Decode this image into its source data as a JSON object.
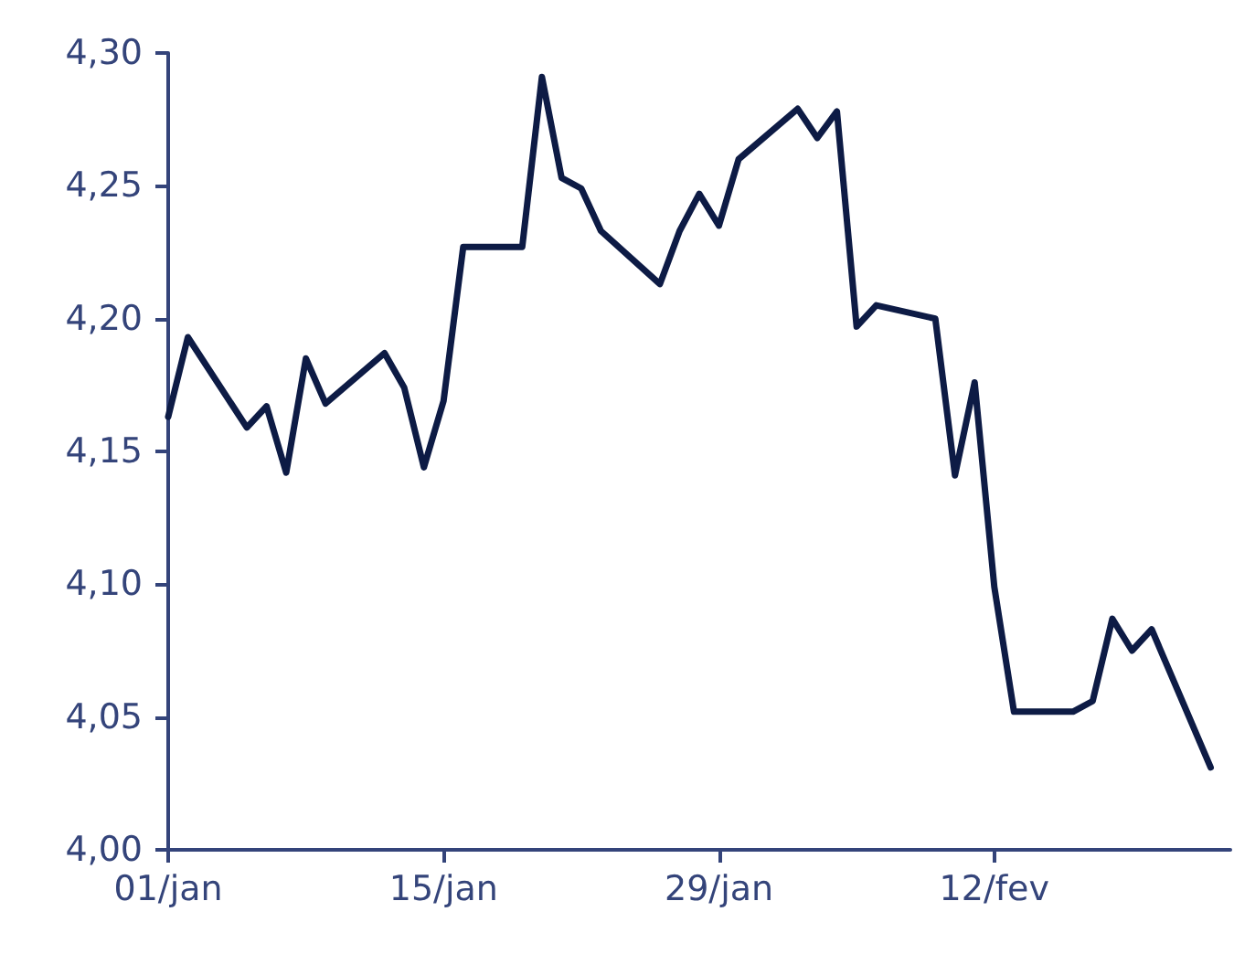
{
  "chart_data": {
    "type": "line",
    "x": [
      "--01-01",
      "--01-02",
      "--01-05",
      "--01-06",
      "--01-07",
      "--01-08",
      "--01-09",
      "--01-12",
      "--01-13",
      "--01-14",
      "--01-15",
      "--01-16",
      "--01-19",
      "--01-20",
      "--01-21",
      "--01-22",
      "--01-23",
      "--01-26",
      "--01-27",
      "--01-28",
      "--01-29",
      "--01-30",
      "--02-02",
      "--02-03",
      "--02-04",
      "--02-05",
      "--02-06",
      "--02-09",
      "--02-10",
      "--02-11",
      "--02-12",
      "--02-13",
      "--02-16",
      "--02-17",
      "--02-18",
      "--02-19",
      "--02-20",
      "--02-23"
    ],
    "series": [
      {
        "color": "#0d1b45",
        "values": [
          4.163,
          4.193,
          4.159,
          4.167,
          4.142,
          4.185,
          4.168,
          4.187,
          4.174,
          4.144,
          4.169,
          4.227,
          4.227,
          4.291,
          4.253,
          4.249,
          4.233,
          4.213,
          4.233,
          4.247,
          4.235,
          4.26,
          4.279,
          4.268,
          4.278,
          4.197,
          4.205,
          4.2,
          4.141,
          4.176,
          4.099,
          4.052,
          4.052,
          4.056,
          4.087,
          4.075,
          4.083,
          4.031
        ]
      }
    ],
    "xlim": [
      "--01-01",
      "--02-24"
    ],
    "xticks": [
      {
        "value": "--01-01",
        "label": "01/jan"
      },
      {
        "value": "--01-15",
        "label": "15/jan"
      },
      {
        "value": "--01-29",
        "label": "29/jan"
      },
      {
        "value": "--02-12",
        "label": "12/fev"
      }
    ],
    "ylim": [
      4.0,
      4.3
    ],
    "yticks": [
      {
        "value": 4.0,
        "label": "4,00"
      },
      {
        "value": 4.05,
        "label": "4,05"
      },
      {
        "value": 4.1,
        "label": "4,10"
      },
      {
        "value": 4.15,
        "label": "4,15"
      },
      {
        "value": 4.2,
        "label": "4,20"
      },
      {
        "value": 4.25,
        "label": "4,25"
      },
      {
        "value": 4.3,
        "label": "4,30"
      }
    ],
    "grid": false,
    "marker": "none",
    "line_style": "solid"
  }
}
